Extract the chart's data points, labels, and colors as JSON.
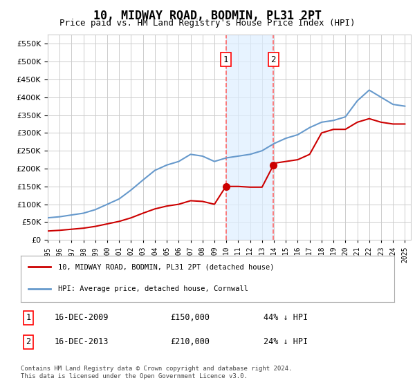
{
  "title": "10, MIDWAY ROAD, BODMIN, PL31 2PT",
  "subtitle": "Price paid vs. HM Land Registry's House Price Index (HPI)",
  "ylabel": "",
  "ylim": [
    0,
    575000
  ],
  "yticks": [
    0,
    50000,
    100000,
    150000,
    200000,
    250000,
    300000,
    350000,
    400000,
    450000,
    500000,
    550000
  ],
  "xlim_start": 1995.0,
  "xlim_end": 2025.5,
  "sale1_x": 2009.96,
  "sale1_y": 150000,
  "sale2_x": 2013.96,
  "sale2_y": 210000,
  "sale1_label": "16-DEC-2009",
  "sale1_price": "£150,000",
  "sale1_hpi": "44% ↓ HPI",
  "sale2_label": "16-DEC-2013",
  "sale2_price": "£210,000",
  "sale2_hpi": "24% ↓ HPI",
  "property_label": "10, MIDWAY ROAD, BODMIN, PL31 2PT (detached house)",
  "hpi_label": "HPI: Average price, detached house, Cornwall",
  "copyright_text": "Contains HM Land Registry data © Crown copyright and database right 2024.\nThis data is licensed under the Open Government Licence v3.0.",
  "line_color_red": "#cc0000",
  "line_color_blue": "#6699cc",
  "vline_color": "#ff6666",
  "shade_color": "#ddeeff",
  "grid_color": "#cccccc",
  "bg_color": "#ffffff",
  "hpi_data_x": [
    1995,
    1996,
    1997,
    1998,
    1999,
    2000,
    2001,
    2002,
    2003,
    2004,
    2005,
    2006,
    2007,
    2008,
    2009,
    2010,
    2011,
    2012,
    2013,
    2014,
    2015,
    2016,
    2017,
    2018,
    2019,
    2020,
    2021,
    2022,
    2023,
    2024,
    2025
  ],
  "hpi_data_y": [
    62000,
    65000,
    70000,
    75000,
    85000,
    100000,
    115000,
    140000,
    168000,
    195000,
    210000,
    220000,
    240000,
    235000,
    220000,
    230000,
    235000,
    240000,
    250000,
    270000,
    285000,
    295000,
    315000,
    330000,
    335000,
    345000,
    390000,
    420000,
    400000,
    380000,
    375000
  ],
  "red_data_x": [
    1995,
    1996,
    1997,
    1998,
    1999,
    2000,
    2001,
    2002,
    2003,
    2004,
    2005,
    2006,
    2007,
    2008,
    2009,
    2009.96,
    2010,
    2011,
    2012,
    2013,
    2013.96,
    2014,
    2015,
    2016,
    2017,
    2018,
    2019,
    2020,
    2021,
    2022,
    2023,
    2024,
    2025
  ],
  "red_data_y": [
    25000,
    27000,
    30000,
    33000,
    38000,
    45000,
    52000,
    62000,
    75000,
    87000,
    95000,
    100000,
    110000,
    108000,
    100000,
    150000,
    150000,
    150000,
    148000,
    148000,
    210000,
    215000,
    220000,
    225000,
    240000,
    300000,
    310000,
    310000,
    330000,
    340000,
    330000,
    325000,
    325000
  ]
}
